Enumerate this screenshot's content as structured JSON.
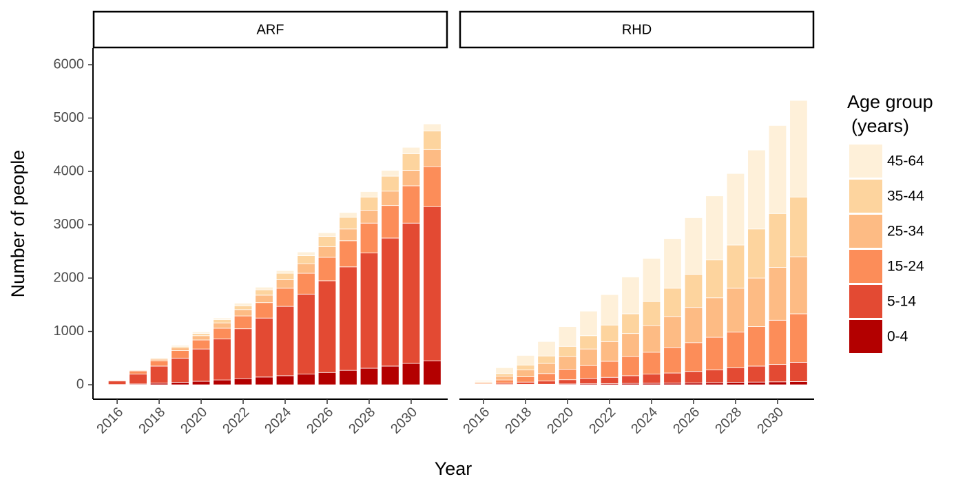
{
  "chart_data": {
    "type": "bar",
    "stacked": true,
    "x_label": "Year",
    "y_label": "Number of people",
    "legend_title": [
      "Age group",
      "(years)"
    ],
    "legend_position": "right",
    "facets": [
      "ARF",
      "RHD"
    ],
    "x": [
      2016,
      2017,
      2018,
      2019,
      2020,
      2021,
      2022,
      2023,
      2024,
      2025,
      2026,
      2027,
      2028,
      2029,
      2030,
      2031
    ],
    "xlim": [
      2014.85,
      2031.74
    ],
    "xticks": [
      2016,
      2018,
      2020,
      2022,
      2024,
      2026,
      2028,
      2030
    ],
    "ylim": [
      -270,
      6310
    ],
    "yticks": [
      0,
      1000,
      2000,
      3000,
      4000,
      5000,
      6000
    ],
    "series": [
      {
        "name": "0-4",
        "color": "#b30000",
        "values": [
          [
            5,
            15,
            30,
            45,
            65,
            90,
            115,
            145,
            170,
            200,
            230,
            270,
            310,
            350,
            400,
            450
          ],
          [
            2,
            5,
            8,
            10,
            15,
            18,
            20,
            25,
            28,
            30,
            35,
            40,
            45,
            50,
            55,
            60
          ]
        ]
      },
      {
        "name": "5-14",
        "color": "#e34a33",
        "values": [
          [
            65,
            185,
            320,
            455,
            605,
            770,
            935,
            1105,
            1300,
            1500,
            1720,
            1940,
            2160,
            2400,
            2630,
            2890
          ],
          [
            8,
            25,
            42,
            60,
            80,
            102,
            120,
            145,
            172,
            190,
            215,
            240,
            275,
            300,
            325,
            360
          ]
        ]
      },
      {
        "name": "15-24",
        "color": "#fc8d59",
        "values": [
          [
            15,
            60,
            100,
            140,
            170,
            200,
            240,
            290,
            340,
            390,
            440,
            490,
            560,
            610,
            700,
            750
          ],
          [
            15,
            60,
            100,
            140,
            195,
            240,
            300,
            360,
            410,
            480,
            540,
            610,
            670,
            740,
            830,
            910
          ]
        ]
      },
      {
        "name": "25-34",
        "color": "#fdbb84",
        "values": [
          [
            3,
            15,
            30,
            50,
            80,
            100,
            120,
            140,
            160,
            180,
            200,
            220,
            240,
            270,
            290,
            320
          ],
          [
            20,
            70,
            130,
            190,
            240,
            310,
            370,
            430,
            500,
            580,
            660,
            740,
            820,
            910,
            990,
            1070
          ]
        ]
      },
      {
        "name": "35-44",
        "color": "#fdd49e",
        "values": [
          [
            1,
            8,
            20,
            30,
            40,
            60,
            70,
            100,
            120,
            150,
            190,
            220,
            250,
            280,
            310,
            350
          ],
          [
            15,
            50,
            90,
            140,
            190,
            250,
            310,
            370,
            450,
            530,
            620,
            710,
            810,
            920,
            1010,
            1120
          ]
        ]
      },
      {
        "name": "45-64",
        "color": "#fef0d9",
        "values": [
          [
            1,
            7,
            10,
            20,
            30,
            30,
            50,
            50,
            50,
            70,
            70,
            90,
            100,
            110,
            120,
            130
          ],
          [
            20,
            110,
            180,
            270,
            370,
            460,
            570,
            690,
            810,
            930,
            1060,
            1200,
            1340,
            1480,
            1650,
            1810
          ]
        ]
      }
    ]
  }
}
